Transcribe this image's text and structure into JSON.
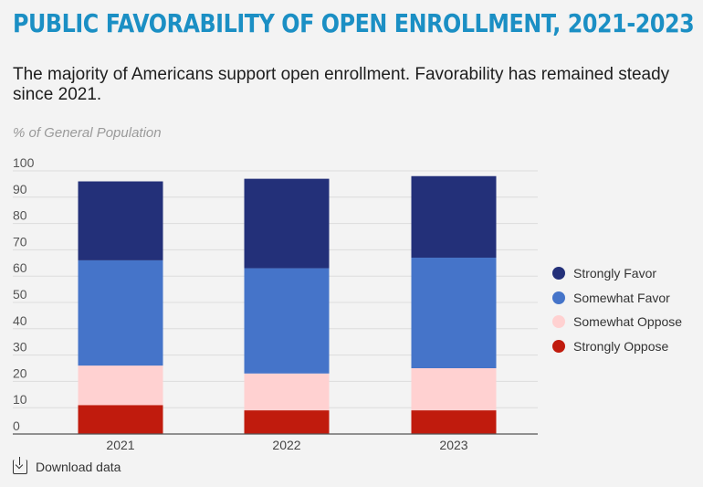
{
  "title": "PUBLIC FAVORABILITY OF OPEN ENROLLMENT, 2021-2023",
  "subtitle": "The majority of Americans support open enrollment. Favorability has remained steady since 2021.",
  "unit_label": "% of General Population",
  "download_label": "Download data",
  "download_icon": "download-icon",
  "chart_data": {
    "type": "bar",
    "stacked": true,
    "categories": [
      "2021",
      "2022",
      "2023"
    ],
    "series": [
      {
        "name": "Strongly Oppose",
        "color": "#c01b0d",
        "values": [
          11,
          9,
          9
        ]
      },
      {
        "name": "Somewhat Oppose",
        "color": "#ffd1d1",
        "values": [
          15,
          14,
          16
        ]
      },
      {
        "name": "Somewhat Favor",
        "color": "#4574c9",
        "values": [
          40,
          40,
          42
        ]
      },
      {
        "name": "Strongly Favor",
        "color": "#233079",
        "values": [
          30,
          34,
          31
        ]
      }
    ],
    "ylim": [
      0,
      100
    ],
    "yticks": [
      "100",
      "90",
      "80",
      "70",
      "60",
      "50",
      "40",
      "30",
      "20",
      "10",
      "0"
    ],
    "grid": true,
    "legend_position": "right",
    "legend_order": [
      "Strongly Favor",
      "Somewhat Favor",
      "Somewhat Oppose",
      "Strongly Oppose"
    ]
  }
}
